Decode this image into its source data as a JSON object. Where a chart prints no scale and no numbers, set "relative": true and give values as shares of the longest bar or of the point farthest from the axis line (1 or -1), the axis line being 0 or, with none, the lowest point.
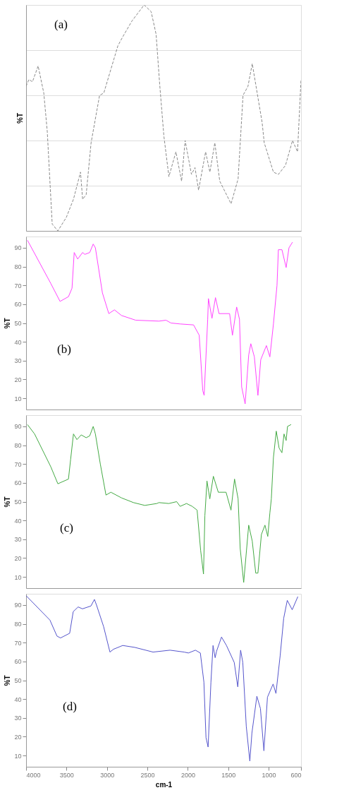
{
  "chart_data": [
    {
      "type": "line",
      "relative": true,
      "ylabel": "%T",
      "annotations": [
        "(a)"
      ],
      "xlim": [
        4000,
        600
      ],
      "tick_labels": false,
      "grid": true,
      "line_style": "dashed",
      "x": [
        4000,
        3965,
        3921,
        3851,
        3781,
        3738,
        3677,
        3607,
        3502,
        3414,
        3327,
        3301,
        3257,
        3196,
        3091,
        3039,
        2864,
        2803,
        2689,
        2540,
        2453,
        2392,
        2348,
        2296,
        2234,
        2147,
        2077,
        2033,
        1955,
        1911,
        1867,
        1780,
        1727,
        1666,
        1605,
        1465,
        1378,
        1317,
        1256,
        1203,
        1081,
        1055,
        941,
        880,
        792,
        705,
        643,
        600
      ],
      "series": [
        {
          "color": "#8a8a8a",
          "values": [
            0.64,
            0.67,
            0.66,
            0.73,
            0.61,
            0.44,
            0.03,
            0.0,
            0.06,
            0.14,
            0.26,
            0.14,
            0.16,
            0.39,
            0.6,
            0.61,
            0.82,
            0.86,
            0.93,
            1.0,
            0.97,
            0.87,
            0.65,
            0.42,
            0.24,
            0.35,
            0.22,
            0.4,
            0.25,
            0.28,
            0.18,
            0.35,
            0.26,
            0.39,
            0.22,
            0.12,
            0.23,
            0.6,
            0.64,
            0.74,
            0.48,
            0.39,
            0.26,
            0.25,
            0.29,
            0.4,
            0.35,
            0.67
          ]
        }
      ]
    },
    {
      "type": "line",
      "ylabel": "%T",
      "annotations": [
        "(b)"
      ],
      "xlim": [
        4000,
        600
      ],
      "ylim": [
        4,
        96
      ],
      "yticks": [
        10,
        20,
        30,
        40,
        50,
        60,
        70,
        80,
        90
      ],
      "tick_labels": "y",
      "line_style": "solid",
      "x": [
        3983,
        3694,
        3580,
        3476,
        3432,
        3405,
        3362,
        3301,
        3274,
        3213,
        3170,
        3143,
        3056,
        2977,
        2907,
        2820,
        2645,
        2357,
        2270,
        2208,
        2095,
        1929,
        1859,
        1815,
        1798,
        1754,
        1745,
        1701,
        1658,
        1614,
        1483,
        1448,
        1396,
        1361,
        1334,
        1291,
        1247,
        1221,
        1177,
        1133,
        1098,
        1028,
        985,
        941,
        897,
        880,
        836,
        784,
        749,
        705
      ],
      "series": [
        {
          "color": "#ff44ff",
          "values": [
            94,
            71,
            61.5,
            64,
            68.5,
            87.5,
            84,
            87.5,
            86.5,
            87.5,
            92,
            90,
            66,
            55,
            57,
            54,
            51.5,
            51,
            51.5,
            50,
            49.5,
            49,
            43.5,
            14,
            11.5,
            52,
            63,
            52.5,
            63.5,
            55,
            55,
            43.5,
            58.5,
            52,
            16,
            7,
            33,
            39,
            32,
            11.5,
            30.5,
            38,
            32,
            49.5,
            70,
            89,
            89,
            79.5,
            90,
            93
          ]
        }
      ]
    },
    {
      "type": "line",
      "ylabel": "%T",
      "annotations": [
        "(c)"
      ],
      "xlim": [
        4000,
        600
      ],
      "ylim": [
        4,
        96
      ],
      "yticks": [
        10,
        20,
        30,
        40,
        50,
        60,
        70,
        80,
        90
      ],
      "tick_labels": "y",
      "line_style": "solid",
      "x": [
        3983,
        3895,
        3694,
        3607,
        3476,
        3449,
        3414,
        3371,
        3318,
        3257,
        3213,
        3170,
        3143,
        3082,
        3012,
        2951,
        2820,
        2672,
        2532,
        2383,
        2357,
        2235,
        2138,
        2095,
        2016,
        1946,
        1885,
        1841,
        1806,
        1789,
        1763,
        1728,
        1684,
        1623,
        1527,
        1466,
        1422,
        1378,
        1352,
        1309,
        1247,
        1203,
        1160,
        1133,
        1090,
        1046,
        1011,
        985,
        967,
        941,
        906,
        871,
        836,
        810,
        784,
        767,
        723
      ],
      "series": [
        {
          "color": "#44aa44",
          "values": [
            91,
            86,
            68.5,
            59.5,
            62,
            72.5,
            86,
            83,
            85.5,
            84,
            85,
            90,
            86,
            70,
            53.5,
            55,
            52,
            49.5,
            48,
            49,
            49.5,
            49,
            50,
            47.5,
            49,
            47.5,
            45.5,
            24,
            11.5,
            42.5,
            61,
            51.5,
            63.5,
            55,
            55,
            45.5,
            62,
            51.5,
            25,
            7,
            37.5,
            29,
            12,
            12,
            32.5,
            37.5,
            31.5,
            44,
            51.5,
            73.5,
            87.5,
            78.5,
            76,
            86,
            82.5,
            90,
            91
          ]
        }
      ]
    },
    {
      "type": "line",
      "ylabel": "%T",
      "xlabel": "cm-1",
      "annotations": [
        "(d)"
      ],
      "xlim": [
        4000,
        600
      ],
      "ylim": [
        4,
        96
      ],
      "xticks": [
        4000,
        3500,
        3000,
        2500,
        2000,
        1500,
        1000,
        600
      ],
      "yticks": [
        10,
        20,
        30,
        40,
        50,
        60,
        70,
        80,
        90
      ],
      "line_style": "solid",
      "x": [
        4000,
        3705,
        3618,
        3574,
        3461,
        3417,
        3356,
        3303,
        3198,
        3155,
        3129,
        3041,
        2963,
        2919,
        2805,
        2657,
        2430,
        2220,
        2045,
        1993,
        1906,
        1845,
        1801,
        1775,
        1749,
        1714,
        1688,
        1662,
        1644,
        1583,
        1522,
        1426,
        1382,
        1347,
        1320,
        1277,
        1233,
        1207,
        1146,
        1102,
        1059,
        1015,
        945,
        910,
        858,
        814,
        770,
        709,
        639
      ],
      "series": [
        {
          "color": "#5555cc",
          "values": [
            95,
            82,
            73.5,
            72.5,
            75,
            86.5,
            89,
            88,
            89.5,
            93,
            90,
            78.5,
            65,
            66.5,
            68.5,
            67.5,
            65,
            66,
            65,
            64.5,
            66,
            64.5,
            49,
            19.5,
            14.5,
            49,
            68.5,
            62,
            65.5,
            73,
            68.5,
            59.5,
            46.5,
            66,
            59.5,
            25.5,
            7,
            22,
            41.5,
            35,
            12.5,
            41,
            48,
            43,
            63,
            83,
            92.5,
            87.5,
            94.5
          ]
        }
      ]
    }
  ]
}
